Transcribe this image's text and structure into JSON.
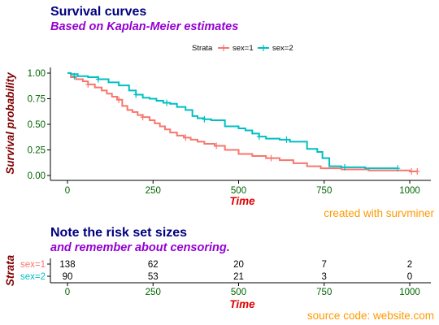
{
  "top": {
    "title": "Survival curves",
    "subtitle": "Based on Kaplan-Meier estimates",
    "ylabel": "Survival probability",
    "xlabel": "Time",
    "caption": "created with survminer",
    "legend_title": "Strata"
  },
  "bottom": {
    "title": "Note the risk set sizes",
    "subtitle": "and remember about censoring.",
    "ylabel": "Strata",
    "xlabel": "Time",
    "caption": "source code: website.com"
  },
  "colors": {
    "sex1": "#F8766D",
    "sex2": "#00BFC4",
    "axis": "#000000"
  },
  "chart_data": [
    {
      "type": "line",
      "title": "Survival curves",
      "subtitle": "Based on Kaplan-Meier estimates",
      "xlabel": "Time",
      "ylabel": "Survival probability",
      "xlim": [
        0,
        1022
      ],
      "ylim": [
        0,
        1
      ],
      "x_ticks": [
        0,
        250,
        500,
        750,
        1000
      ],
      "x_tick_labels": [
        "0",
        "250",
        "500",
        "750",
        "1000"
      ],
      "y_ticks": [
        0,
        0.25,
        0.5,
        0.75,
        1
      ],
      "y_tick_labels": [
        "0.00",
        "0.25",
        "0.50",
        "0.75",
        "1.00"
      ],
      "grid": false,
      "legend_position": "top",
      "series": [
        {
          "name": "sex=1",
          "color": "#F8766D",
          "x": [
            0,
            10,
            25,
            45,
            60,
            80,
            100,
            115,
            130,
            145,
            160,
            175,
            190,
            205,
            220,
            240,
            255,
            270,
            285,
            300,
            320,
            340,
            360,
            380,
            400,
            430,
            460,
            500,
            540,
            580,
            620,
            660,
            700,
            740,
            800,
            880,
            1000,
            1022
          ],
          "y": [
            1.0,
            0.96,
            0.94,
            0.92,
            0.89,
            0.86,
            0.83,
            0.8,
            0.77,
            0.74,
            0.68,
            0.64,
            0.62,
            0.59,
            0.57,
            0.54,
            0.51,
            0.48,
            0.45,
            0.42,
            0.39,
            0.37,
            0.35,
            0.33,
            0.31,
            0.29,
            0.25,
            0.21,
            0.19,
            0.17,
            0.15,
            0.12,
            0.09,
            0.07,
            0.06,
            0.05,
            0.04,
            0.04
          ],
          "censored_x": [
            60,
            150,
            220,
            345,
            435,
            595,
            1005,
            1022
          ],
          "censored_y": [
            0.89,
            0.74,
            0.57,
            0.37,
            0.29,
            0.17,
            0.04,
            0.04
          ]
        },
        {
          "name": "sex=2",
          "color": "#00BFC4",
          "x": [
            0,
            10,
            30,
            60,
            90,
            120,
            150,
            180,
            200,
            220,
            240,
            260,
            280,
            300,
            320,
            345,
            365,
            380,
            400,
            420,
            460,
            500,
            520,
            540,
            560,
            580,
            620,
            650,
            700,
            730,
            745,
            765,
            800,
            870,
            965
          ],
          "y": [
            1.0,
            0.99,
            0.97,
            0.96,
            0.94,
            0.91,
            0.88,
            0.83,
            0.79,
            0.76,
            0.75,
            0.73,
            0.71,
            0.7,
            0.67,
            0.64,
            0.58,
            0.56,
            0.55,
            0.54,
            0.48,
            0.46,
            0.44,
            0.41,
            0.38,
            0.36,
            0.35,
            0.33,
            0.26,
            0.23,
            0.17,
            0.09,
            0.08,
            0.07,
            0.07
          ],
          "censored_x": [
            20,
            90,
            200,
            290,
            400,
            560,
            640,
            810,
            965
          ],
          "censored_y": [
            0.97,
            0.94,
            0.79,
            0.71,
            0.55,
            0.38,
            0.35,
            0.08,
            0.07
          ]
        }
      ]
    },
    {
      "type": "table",
      "title": "Note the risk set sizes",
      "subtitle": "and remember about censoring.",
      "xlabel": "Time",
      "ylabel": "Strata",
      "xlim": [
        0,
        1022
      ],
      "x_ticks": [
        0,
        250,
        500,
        750,
        1000
      ],
      "x_tick_labels": [
        "0",
        "250",
        "500",
        "750",
        "1000"
      ],
      "rows": [
        {
          "name": "sex=1",
          "color": "#F8766D",
          "values": [
            "138",
            "62",
            "20",
            "7",
            "2"
          ]
        },
        {
          "name": "sex=2",
          "color": "#00BFC4",
          "values": [
            "90",
            "53",
            "21",
            "3",
            "0"
          ]
        }
      ]
    }
  ]
}
